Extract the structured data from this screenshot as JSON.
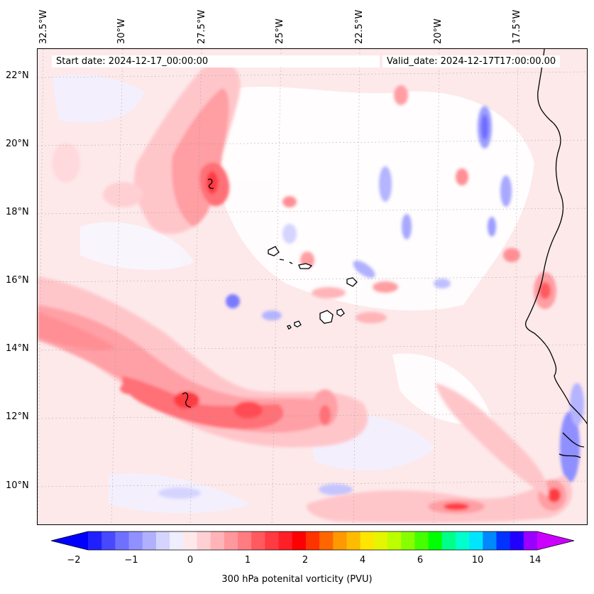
{
  "longitude_labels": [
    "32.5°W",
    "30°W",
    "27.5°W",
    "25°W",
    "22.5°W",
    "20°W",
    "17.5°W"
  ],
  "latitude_labels": [
    "22°N",
    "20°N",
    "18°N",
    "16°N",
    "14°N",
    "12°N",
    "10°N"
  ],
  "start_date": "Start date: 2024-12-17_00:00:00",
  "valid_date": "Valid_date: 2024-12-17T17:00:00.00",
  "colorbar": {
    "label": "300 hPa potenital vorticity (PVU)",
    "tick_labels": [
      "−2",
      "−1",
      "0",
      "1",
      "2",
      "4",
      "6",
      "10",
      "14"
    ],
    "colors": [
      "#0000ff",
      "#2020ff",
      "#4848ff",
      "#7070ff",
      "#9090ff",
      "#b0b0ff",
      "#d4d4ff",
      "#eeeeff",
      "#ffe8ea",
      "#ffd0d3",
      "#ffb4b8",
      "#ff989c",
      "#ff7c80",
      "#ff5a60",
      "#ff3a40",
      "#ff1f26",
      "#ff0000",
      "#ff3300",
      "#ff6600",
      "#ff9900",
      "#ffbb00",
      "#ffe600",
      "#e6f500",
      "#bbff00",
      "#88ff00",
      "#44ff00",
      "#00ff00",
      "#00ff88",
      "#00ffcc",
      "#00e5ff",
      "#0088ff",
      "#0033ff",
      "#2200ff",
      "#9900ff",
      "#cc00ff"
    ]
  }
}
